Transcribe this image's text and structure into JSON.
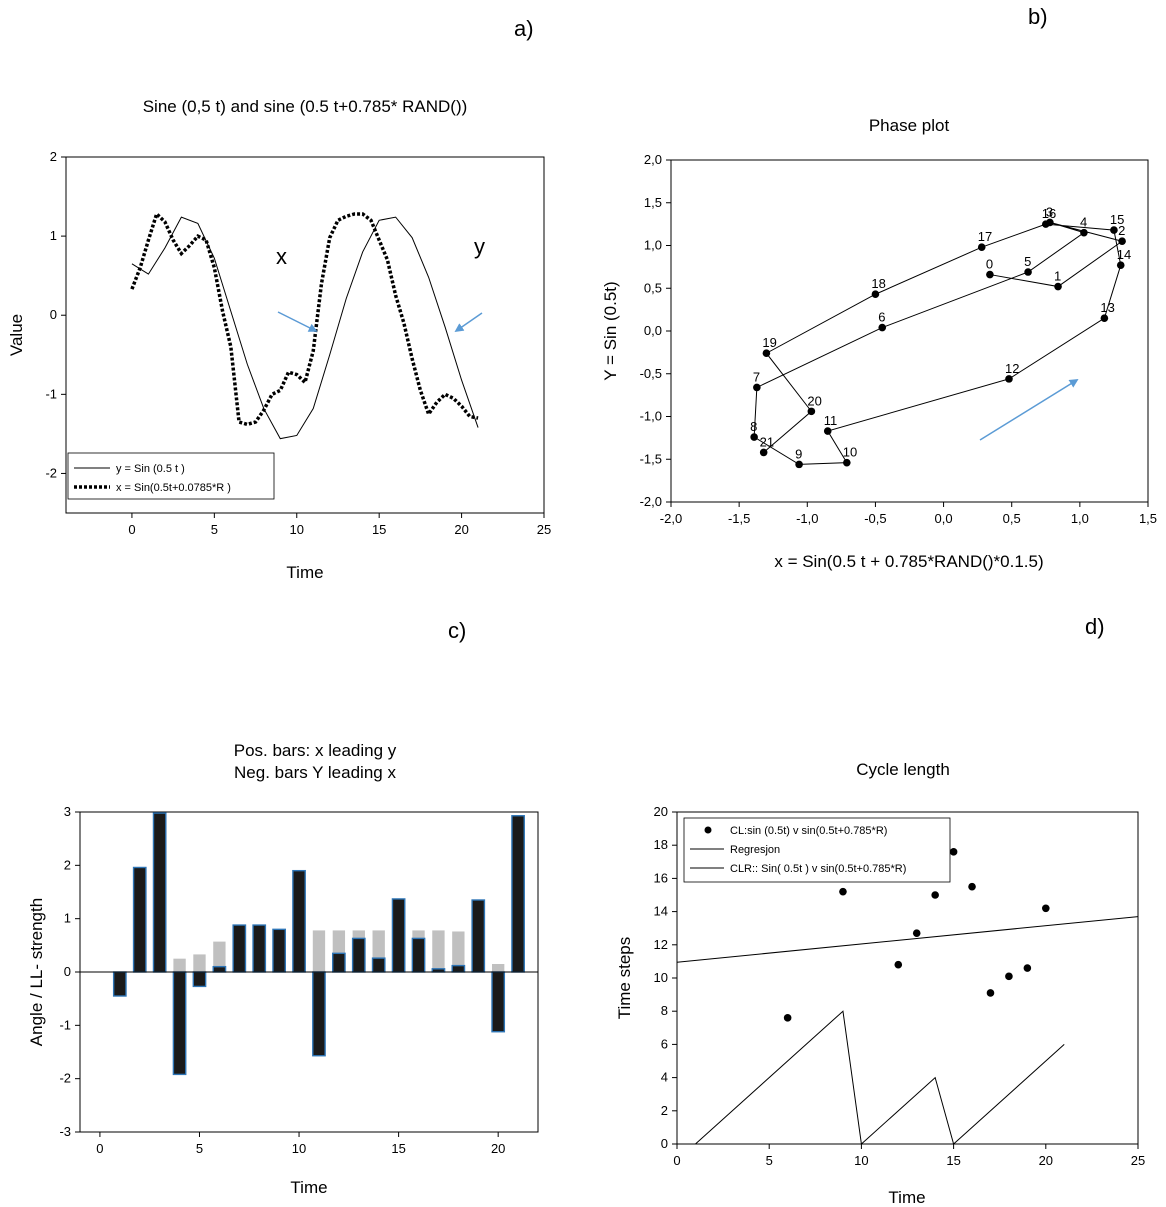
{
  "panels": {
    "a": {
      "letter": "a)"
    },
    "b": {
      "letter": "b)"
    },
    "c": {
      "letter": "c)"
    },
    "d": {
      "letter": "d)"
    }
  },
  "colors": {
    "arrow": "#5b9bd5",
    "bar_dark": "#1a1a1a",
    "bar_edge": "#2e75b6",
    "bar_grey": "#c0c0c0"
  },
  "chart_data": [
    {
      "id": "a",
      "type": "line",
      "title": "Sine (0,5 t) and sine (0.5 t+0.785* RAND())",
      "xlabel": "Time",
      "ylabel": "Value",
      "xlim": [
        -4,
        25
      ],
      "ylim": [
        -2.5,
        2
      ],
      "xticks": [
        0,
        5,
        10,
        15,
        20,
        25
      ],
      "yticks": [
        -2,
        -1,
        0,
        1,
        2
      ],
      "legend_position": "bottom-left",
      "annotations": [
        "x",
        "y"
      ],
      "series": [
        {
          "name": "y = Sin (0.5 t )",
          "style": "solid",
          "x": [
            0,
            1,
            2,
            3,
            4,
            5,
            6,
            7,
            8,
            9,
            10,
            11,
            12,
            13,
            14,
            15,
            16,
            17,
            18,
            19,
            20,
            21
          ],
          "y": [
            0.65,
            0.52,
            0.85,
            1.24,
            1.16,
            0.72,
            0.05,
            -0.62,
            -1.18,
            -1.56,
            -1.52,
            -1.18,
            -0.5,
            0.21,
            0.8,
            1.2,
            1.24,
            0.98,
            0.48,
            -0.15,
            -0.82,
            -1.42
          ]
        },
        {
          "name": "x = Sin(0.5t+0.0785*R )",
          "style": "dotted",
          "x": [
            0,
            0.5,
            1,
            1.5,
            2,
            2.5,
            3,
            3.5,
            4,
            4.5,
            5,
            5.5,
            6,
            6.5,
            7,
            7.5,
            8,
            8.5,
            9,
            9.5,
            10,
            10.5,
            11,
            11.5,
            12,
            12.5,
            13,
            13.5,
            14,
            14.5,
            15,
            15.5,
            16,
            16.5,
            17,
            17.5,
            18,
            18.5,
            19,
            19.5,
            20,
            20.5,
            21
          ],
          "y": [
            0.33,
            0.6,
            0.95,
            1.28,
            1.18,
            0.95,
            0.78,
            0.88,
            1.0,
            0.95,
            0.6,
            0.05,
            -0.4,
            -1.35,
            -1.38,
            -1.35,
            -1.2,
            -1.0,
            -0.95,
            -0.72,
            -0.75,
            -0.85,
            -0.45,
            0.4,
            0.98,
            1.2,
            1.25,
            1.28,
            1.28,
            1.2,
            0.95,
            0.7,
            0.25,
            -0.1,
            -0.55,
            -0.95,
            -1.25,
            -1.1,
            -1.0,
            -1.05,
            -1.15,
            -1.28,
            -1.3
          ]
        }
      ]
    },
    {
      "id": "b",
      "type": "scatter",
      "title": "Phase plot",
      "xlabel": "x = Sin(0.5 t + 0.785*RAND()*0.1.5)",
      "ylabel": "Y = Sin (0.5t)",
      "xlim": [
        -2.0,
        1.5
      ],
      "ylim": [
        -2.0,
        2.0
      ],
      "xticks": [
        "-2,0",
        "-1,5",
        "-1,0",
        "-0,5",
        "0,0",
        "0,5",
        "1,0",
        "1,5"
      ],
      "yticks": [
        "-2,0",
        "-1,5",
        "-1,0",
        "-0,5",
        "0,0",
        "0,5",
        "1,0",
        "1,5",
        "2,0"
      ],
      "connected": true,
      "point_labels": [
        "0",
        "1",
        "2",
        "3",
        "4",
        "5",
        "6",
        "7",
        "8",
        "9",
        "10",
        "11",
        "12",
        "13",
        "14",
        "15",
        "16",
        "17",
        "18",
        "19",
        "20",
        "21"
      ],
      "x": [
        0.34,
        0.84,
        1.31,
        0.78,
        1.03,
        0.62,
        -0.45,
        -1.37,
        -1.39,
        -1.06,
        -0.71,
        -0.85,
        0.48,
        1.18,
        1.3,
        1.25,
        0.75,
        0.28,
        -0.5,
        -1.3,
        -0.97,
        -1.32
      ],
      "y": [
        0.66,
        0.52,
        1.05,
        1.27,
        1.15,
        0.69,
        0.04,
        -0.66,
        -1.24,
        -1.56,
        -1.54,
        -1.17,
        -0.56,
        0.15,
        0.77,
        1.18,
        1.25,
        0.98,
        0.43,
        -0.26,
        -0.94,
        -1.42
      ]
    },
    {
      "id": "c",
      "type": "bar",
      "title": "Pos. bars: x leading y",
      "subtitle": "Neg. bars Y leading x",
      "xlabel": "Time",
      "ylabel": "Angle / LL- strength",
      "xlim": [
        -1,
        22
      ],
      "ylim": [
        -3,
        3
      ],
      "xticks": [
        0,
        5,
        10,
        15,
        20
      ],
      "yticks": [
        -3,
        -2,
        -1,
        0,
        1,
        2,
        3
      ],
      "x": [
        1,
        2,
        3,
        4,
        5,
        6,
        7,
        8,
        9,
        10,
        11,
        12,
        13,
        14,
        15,
        16,
        17,
        18,
        19,
        20,
        21
      ],
      "series": [
        {
          "values": [
            0,
            0,
            0,
            0.25,
            0.33,
            0.57,
            0,
            0,
            0,
            0,
            0.78,
            0.78,
            0.78,
            0.78,
            0,
            0.78,
            0.78,
            0.76,
            0,
            0.15,
            0
          ]
        },
        {
          "values": [
            -0.45,
            1.96,
            2.98,
            -1.92,
            -0.27,
            0.1,
            0.88,
            0.88,
            0.8,
            1.9,
            -1.57,
            0.35,
            0.63,
            0.26,
            1.37,
            0.63,
            0.06,
            0.12,
            1.35,
            -1.12,
            2.93
          ]
        }
      ]
    },
    {
      "id": "d",
      "type": "scatter",
      "title": "Cycle length",
      "xlabel": "Time",
      "ylabel": "Time steps",
      "xlim": [
        0,
        25
      ],
      "ylim": [
        0,
        20
      ],
      "xticks": [
        0,
        5,
        10,
        15,
        20,
        25
      ],
      "yticks": [
        0,
        2,
        4,
        6,
        8,
        10,
        12,
        14,
        16,
        18,
        20
      ],
      "legend_position": "top-left",
      "series": [
        {
          "name": "CL:sin (0.5t) v sin(0.5t+0.785*R)",
          "kind": "points",
          "x": [
            6,
            9,
            12,
            13,
            14,
            15,
            16,
            17,
            18,
            19,
            20
          ],
          "y": [
            7.6,
            15.2,
            10.8,
            12.7,
            15.0,
            17.6,
            15.5,
            9.1,
            10.1,
            10.6,
            14.2
          ]
        },
        {
          "name": "Regresjon",
          "kind": "line",
          "x": [
            0,
            25
          ],
          "y": [
            10.95,
            13.7
          ]
        },
        {
          "name": "CLR:: Sin( 0.5t ) v sin(0.5t+0.785*R)",
          "kind": "line",
          "x": [
            1,
            9,
            10,
            14,
            15,
            21
          ],
          "y": [
            0,
            8,
            0,
            4,
            0,
            6
          ]
        }
      ]
    }
  ]
}
